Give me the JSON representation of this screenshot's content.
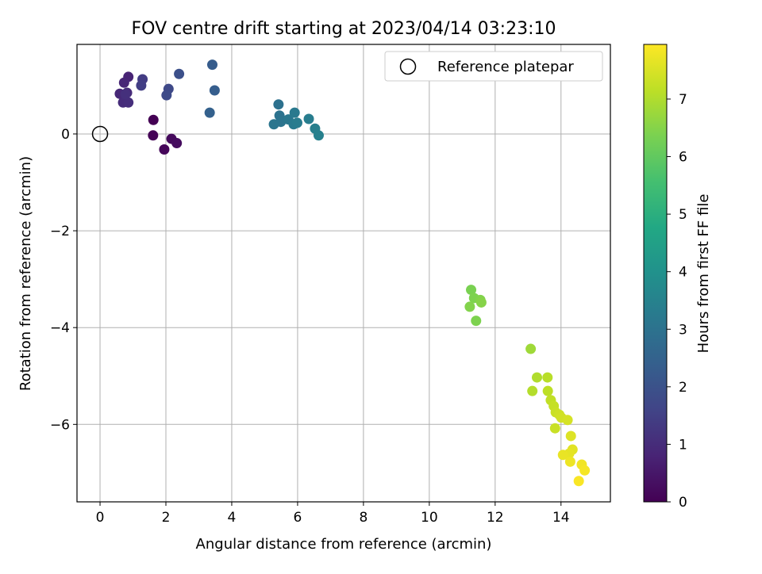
{
  "chart_data": {
    "type": "scatter",
    "title": "FOV centre drift starting at 2023/04/14 03:23:10",
    "xlabel": "Angular distance from reference (arcmin)",
    "ylabel": "Rotation from reference (arcmin)",
    "xlim": [
      -0.7,
      15.5
    ],
    "ylim": [
      -7.6,
      1.85
    ],
    "xticks": [
      0,
      2,
      4,
      6,
      8,
      10,
      12,
      14
    ],
    "yticks": [
      -6,
      -4,
      -2,
      0
    ],
    "grid": true,
    "legend": {
      "placement": "top-right",
      "entries": [
        {
          "label": "Reference platepar",
          "marker": "open-circle"
        }
      ]
    },
    "reference_point": {
      "x": 0,
      "y": 0
    },
    "colorbar": {
      "label": "Hours from first FF file",
      "colormap": "viridis",
      "range": [
        0,
        7.95
      ],
      "ticks": [
        0,
        1,
        2,
        3,
        4,
        5,
        6,
        7
      ]
    },
    "points": [
      {
        "x": 1.62,
        "y": 0.29,
        "c": 0.0
      },
      {
        "x": 1.61,
        "y": -0.03,
        "c": 0.05
      },
      {
        "x": 1.95,
        "y": -0.32,
        "c": 0.12
      },
      {
        "x": 2.17,
        "y": -0.1,
        "c": 0.2
      },
      {
        "x": 2.33,
        "y": -0.19,
        "c": 0.25
      },
      {
        "x": 0.86,
        "y": 1.18,
        "c": 0.8
      },
      {
        "x": 0.73,
        "y": 1.06,
        "c": 0.85
      },
      {
        "x": 0.6,
        "y": 0.83,
        "c": 0.9
      },
      {
        "x": 0.82,
        "y": 0.85,
        "c": 0.95
      },
      {
        "x": 0.7,
        "y": 0.65,
        "c": 1.0
      },
      {
        "x": 0.86,
        "y": 0.65,
        "c": 1.05
      },
      {
        "x": 0.77,
        "y": 0.82,
        "c": 1.1
      },
      {
        "x": 1.29,
        "y": 1.13,
        "c": 1.4
      },
      {
        "x": 1.25,
        "y": 1.0,
        "c": 1.45
      },
      {
        "x": 2.08,
        "y": 0.93,
        "c": 1.75
      },
      {
        "x": 2.02,
        "y": 0.8,
        "c": 1.8
      },
      {
        "x": 2.4,
        "y": 1.24,
        "c": 1.95
      },
      {
        "x": 3.41,
        "y": 1.43,
        "c": 2.3
      },
      {
        "x": 3.48,
        "y": 0.9,
        "c": 2.35
      },
      {
        "x": 3.33,
        "y": 0.44,
        "c": 2.45
      },
      {
        "x": 5.42,
        "y": 0.61,
        "c": 2.95
      },
      {
        "x": 5.45,
        "y": 0.38,
        "c": 3.0
      },
      {
        "x": 5.49,
        "y": 0.25,
        "c": 3.05
      },
      {
        "x": 5.28,
        "y": 0.2,
        "c": 3.1
      },
      {
        "x": 5.72,
        "y": 0.3,
        "c": 3.15
      },
      {
        "x": 5.91,
        "y": 0.44,
        "c": 3.2
      },
      {
        "x": 5.88,
        "y": 0.2,
        "c": 3.25
      },
      {
        "x": 5.99,
        "y": 0.23,
        "c": 3.3
      },
      {
        "x": 6.34,
        "y": 0.31,
        "c": 3.35
      },
      {
        "x": 6.53,
        "y": 0.11,
        "c": 3.4
      },
      {
        "x": 6.64,
        "y": -0.03,
        "c": 3.45
      },
      {
        "x": 11.27,
        "y": -3.22,
        "c": 6.35
      },
      {
        "x": 11.36,
        "y": -3.39,
        "c": 6.4
      },
      {
        "x": 11.55,
        "y": -3.43,
        "c": 6.45
      },
      {
        "x": 11.58,
        "y": -3.48,
        "c": 6.5
      },
      {
        "x": 11.23,
        "y": -3.57,
        "c": 6.45
      },
      {
        "x": 11.42,
        "y": -3.86,
        "c": 6.4
      },
      {
        "x": 13.08,
        "y": -4.44,
        "c": 6.8
      },
      {
        "x": 13.27,
        "y": -5.03,
        "c": 7.0
      },
      {
        "x": 13.13,
        "y": -5.31,
        "c": 7.05
      },
      {
        "x": 13.59,
        "y": -5.03,
        "c": 7.1
      },
      {
        "x": 13.6,
        "y": -5.31,
        "c": 7.15
      },
      {
        "x": 13.69,
        "y": -5.5,
        "c": 7.2
      },
      {
        "x": 13.78,
        "y": -5.62,
        "c": 7.25
      },
      {
        "x": 13.84,
        "y": -5.75,
        "c": 7.3
      },
      {
        "x": 13.95,
        "y": -5.8,
        "c": 7.35
      },
      {
        "x": 14.01,
        "y": -5.86,
        "c": 7.4
      },
      {
        "x": 14.2,
        "y": -5.91,
        "c": 7.45
      },
      {
        "x": 13.82,
        "y": -6.08,
        "c": 7.3
      },
      {
        "x": 14.3,
        "y": -6.24,
        "c": 7.55
      },
      {
        "x": 14.35,
        "y": -6.52,
        "c": 7.6
      },
      {
        "x": 14.25,
        "y": -6.6,
        "c": 7.65
      },
      {
        "x": 14.06,
        "y": -6.63,
        "c": 7.7
      },
      {
        "x": 14.28,
        "y": -6.77,
        "c": 7.75
      },
      {
        "x": 14.63,
        "y": -6.83,
        "c": 7.8
      },
      {
        "x": 14.72,
        "y": -6.95,
        "c": 7.85
      },
      {
        "x": 14.54,
        "y": -7.17,
        "c": 7.9
      }
    ]
  }
}
